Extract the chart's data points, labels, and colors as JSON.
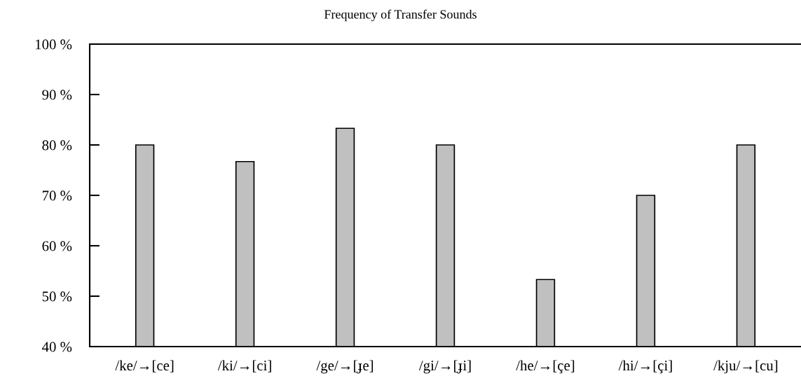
{
  "chart_data": {
    "type": "bar",
    "title": "Frequency of Transfer Sounds",
    "categories": [
      "/ke/→[ce]",
      "/ki/→[ci]",
      "/ge/→[ɟe]",
      "/gi/→[ɟi]",
      "/he/→[çe]",
      "/hi/→[çi]",
      "/kju/→[cu]"
    ],
    "values": [
      80,
      76.7,
      83.3,
      80,
      53.3,
      70,
      80
    ],
    "color": "#c0c0c0",
    "ylim": [
      40,
      100
    ],
    "yticks": [
      {
        "value": 40,
        "label": "40 %"
      },
      {
        "value": 50,
        "label": "50 %"
      },
      {
        "value": 60,
        "label": "60 %"
      },
      {
        "value": 70,
        "label": "70 %"
      },
      {
        "value": 80,
        "label": "80 %"
      },
      {
        "value": 90,
        "label": "90 %"
      },
      {
        "value": 100,
        "label": "100 %"
      }
    ],
    "grid": false,
    "legend": false
  }
}
